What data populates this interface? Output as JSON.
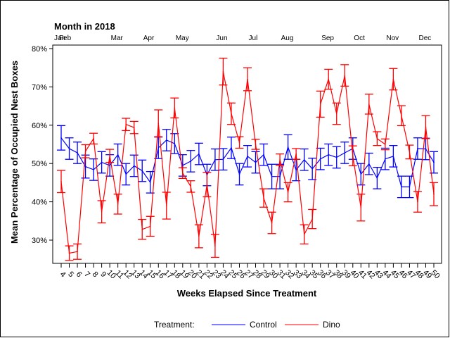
{
  "chart_data": {
    "type": "line",
    "title": "",
    "top_axis_title": "Month in 2018",
    "months": [
      {
        "label": "Jan",
        "week": 4
      },
      {
        "label": "Feb",
        "week": 4.6
      },
      {
        "label": "Mar",
        "week": 11
      },
      {
        "label": "Apr",
        "week": 15
      },
      {
        "label": "May",
        "week": 19
      },
      {
        "label": "Jun",
        "week": 24
      },
      {
        "label": "Jul",
        "week": 28
      },
      {
        "label": "Aug",
        "week": 32
      },
      {
        "label": "Sep",
        "week": 37
      },
      {
        "label": "Oct",
        "week": 41
      },
      {
        "label": "Nov",
        "week": 45
      },
      {
        "label": "Dec",
        "week": 49
      }
    ],
    "xlabel": "Weeks Elapsed Since Treatment",
    "ylabel": "Mean Percentage of Occupied Nest Boxes",
    "x": [
      4,
      5,
      6,
      7,
      8,
      9,
      10,
      11,
      12,
      13,
      14,
      15,
      16,
      17,
      18,
      19,
      20,
      21,
      22,
      23,
      24,
      25,
      26,
      27,
      28,
      29,
      30,
      31,
      32,
      33,
      34,
      35,
      36,
      37,
      38,
      39,
      40,
      41,
      42,
      43,
      44,
      45,
      46,
      47,
      48,
      49,
      50
    ],
    "xlim": [
      3,
      51
    ],
    "ylim": [
      27.5,
      80.5
    ],
    "yticks": [
      30,
      40,
      50,
      60,
      70,
      80
    ],
    "ytick_labels": [
      "30%",
      "40%",
      "50%",
      "60%",
      "70%",
      "80%"
    ],
    "grid": false,
    "legend": {
      "title": "Treatment:",
      "placement": "bottom"
    },
    "series": [
      {
        "name": "Control",
        "color": "#0000ff",
        "values": [
          56.7,
          53.9,
          52.8,
          49.2,
          48.4,
          50.3,
          49.5,
          52.3,
          47.2,
          49.4,
          48.1,
          45.1,
          54.1,
          56.1,
          55.2,
          49.5,
          50.6,
          52.5,
          47.0,
          51.0,
          51.1,
          54.1,
          47.2,
          51.9,
          50.3,
          52.3,
          46.6,
          46.6,
          54.3,
          48.3,
          51.0,
          48.6,
          51.2,
          52.3,
          51.6,
          52.8,
          53.9,
          47.2,
          49.9,
          46.2,
          51.2,
          51.9,
          43.9,
          43.9,
          53.9,
          53.8,
          50.3
        ],
        "error": [
          3.2,
          2.8,
          2.8,
          3.0,
          2.8,
          2.8,
          2.8,
          2.8,
          2.8,
          2.8,
          2.8,
          2.8,
          2.8,
          2.8,
          2.6,
          2.8,
          2.8,
          2.8,
          2.8,
          2.8,
          2.8,
          2.8,
          2.8,
          2.8,
          2.8,
          2.8,
          3.2,
          3.2,
          3.2,
          2.8,
          2.8,
          2.8,
          2.8,
          2.8,
          2.8,
          2.8,
          2.8,
          2.8,
          2.8,
          2.8,
          2.8,
          2.8,
          2.8,
          2.8,
          2.8,
          2.8,
          2.8
        ]
      },
      {
        "name": "Dino",
        "color": "#ff0000",
        "values": [
          45.3,
          26.6,
          27.0,
          53.2,
          56.5,
          37.4,
          52.0,
          39.4,
          60.2,
          59.4,
          32.8,
          33.6,
          60.5,
          39.0,
          64.5,
          47.5,
          44.0,
          31.0,
          44.5,
          28.5,
          74.0,
          63.0,
          55.5,
          72.0,
          55.0,
          41.0,
          34.5,
          51.0,
          42.5,
          52.5,
          31.5,
          35.5,
          65.5,
          72.0,
          63.0,
          73.0,
          52.0,
          38.5,
          65.5,
          56.5,
          55.0,
          72.0,
          62.5,
          53.0,
          40.0,
          59.5,
          42.0
        ],
        "error": [
          2.9,
          1.9,
          2.0,
          1.7,
          1.4,
          2.9,
          1.7,
          2.6,
          1.6,
          1.6,
          2.6,
          2.6,
          3.5,
          3.5,
          2.6,
          1.4,
          1.5,
          3.0,
          3.2,
          3.0,
          3.5,
          2.8,
          1.5,
          3.0,
          1.3,
          2.4,
          2.8,
          1.5,
          2.5,
          1.4,
          2.5,
          2.5,
          3.4,
          2.6,
          2.8,
          2.8,
          2.6,
          3.5,
          2.6,
          1.8,
          1.4,
          2.8,
          2.6,
          1.8,
          2.7,
          3.0,
          3.0
        ]
      }
    ]
  }
}
